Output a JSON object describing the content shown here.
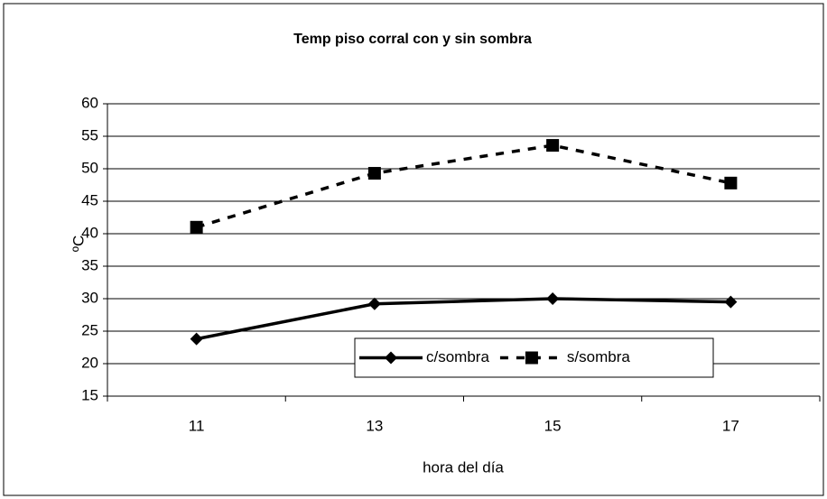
{
  "chart_data": {
    "type": "line",
    "title": "Temp piso corral con y sin sombra",
    "x_label": "hora del día",
    "y_label": "ºC",
    "categories": [
      "11",
      "13",
      "15",
      "17"
    ],
    "series": [
      {
        "name": "c/sombra",
        "color": "#000000",
        "line_style": "solid",
        "marker": "diamond",
        "values": [
          23.8,
          29.2,
          30.0,
          29.5
        ]
      },
      {
        "name": "s/sombra",
        "color": "#000000",
        "line_style": "dashed",
        "marker": "square",
        "values": [
          41.0,
          49.3,
          53.6,
          47.8
        ]
      }
    ],
    "ylim": [
      15,
      60
    ],
    "yticks": [
      15,
      20,
      25,
      30,
      35,
      40,
      45,
      50,
      55,
      60
    ],
    "grid": true
  }
}
